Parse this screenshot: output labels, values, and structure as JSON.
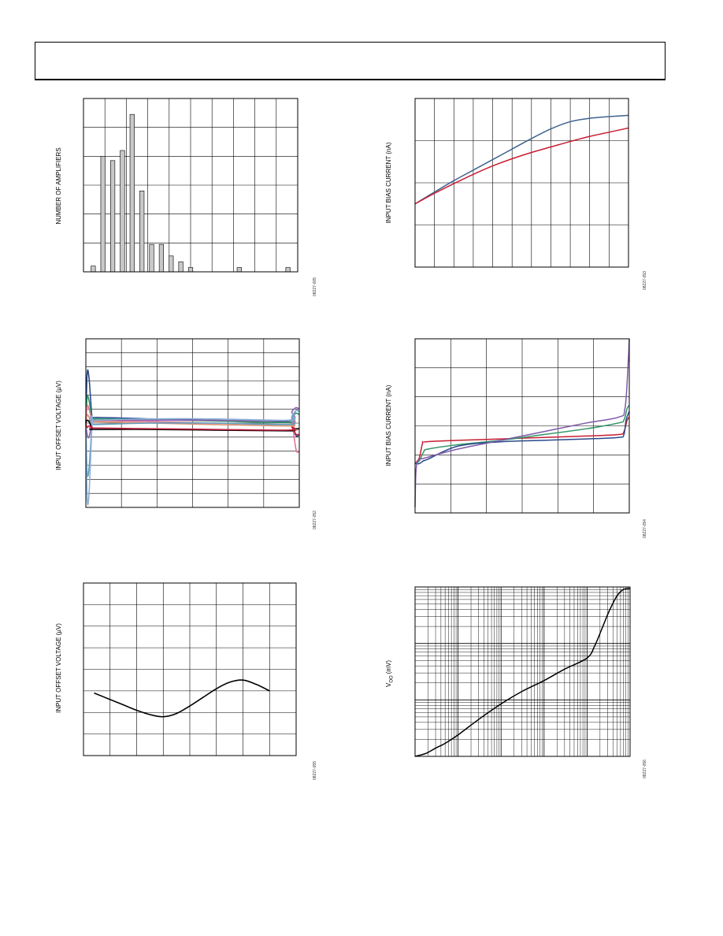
{
  "header": {
    "text": ""
  },
  "chart_data": [
    {
      "id": "c1",
      "type": "bar",
      "ylabel": "NUMBER OF AMPLIFIERS",
      "fig_id": "08227-005",
      "x": [
        1,
        2,
        3,
        4,
        5,
        6,
        7,
        8,
        9,
        10,
        11,
        12,
        13,
        14,
        15,
        16,
        17,
        18,
        19,
        20,
        21
      ],
      "values": [
        0.2,
        4.0,
        3.85,
        4.2,
        5.45,
        2.8,
        0.95,
        0.95,
        0.55,
        0.35,
        0.15,
        0,
        0,
        0,
        0,
        0.15,
        0,
        0,
        0,
        0,
        0.15
      ],
      "xlim": [
        0,
        22
      ],
      "ylim": [
        0,
        6
      ],
      "x_gridlines": 10,
      "y_gridlines": 6,
      "grid": true,
      "bar_color": "#c8c8c8"
    },
    {
      "id": "c2",
      "type": "line",
      "ylabel": "INPUT BIAS CURRENT (nA)",
      "fig_id": "08227-053",
      "xlim": [
        0,
        11
      ],
      "ylim": [
        0,
        4
      ],
      "x_gridlines": 11,
      "y_gridlines": 4,
      "grid": true,
      "series": [
        {
          "color": "#3f6390",
          "x": [
            0,
            1,
            2,
            3,
            4,
            5,
            6,
            7,
            8,
            9,
            10,
            11
          ],
          "y": [
            1.5,
            1.78,
            2.05,
            2.3,
            2.55,
            2.8,
            3.05,
            3.28,
            3.45,
            3.53,
            3.57,
            3.6
          ]
        },
        {
          "color": "#c81e32",
          "x": [
            0,
            1,
            2,
            3,
            4,
            5,
            6,
            7,
            8,
            9,
            10,
            11
          ],
          "y": [
            1.5,
            1.75,
            1.98,
            2.2,
            2.4,
            2.57,
            2.72,
            2.85,
            2.98,
            3.1,
            3.2,
            3.3
          ]
        }
      ]
    },
    {
      "id": "c3",
      "type": "line",
      "ylabel": "INPUT OFFSET VOLTAGE (µV)",
      "fig_id": "08227-052",
      "xlim": [
        0,
        100
      ],
      "ylim": [
        -6,
        6
      ],
      "x_gridlines": 6,
      "y_gridlines": 12,
      "grid": true,
      "series": [
        {
          "color": "#2a4a8c",
          "x": [
            0,
            0.6,
            1.5,
            3,
            4,
            30,
            60,
            95,
            96.5,
            98.5,
            100
          ],
          "y": [
            0,
            3.5,
            3.2,
            0.2,
            0.4,
            0.3,
            0.2,
            0.1,
            -0.1,
            -0.9,
            -0.8
          ]
        },
        {
          "color": "#2e9464",
          "x": [
            0,
            0.6,
            1.5,
            3,
            4,
            30,
            60,
            95,
            96.5,
            98.5,
            100
          ],
          "y": [
            0,
            1.8,
            1.6,
            0.2,
            0.3,
            0.25,
            0.15,
            0.05,
            0.4,
            0.7,
            0.6
          ]
        },
        {
          "color": "#e07890",
          "x": [
            0,
            0.6,
            1.5,
            3,
            4,
            30,
            60,
            95,
            96.5,
            98.5,
            100
          ],
          "y": [
            0,
            1.2,
            1.0,
            0.1,
            0.2,
            0.1,
            0.0,
            -0.1,
            0.1,
            -1.9,
            -2.0
          ]
        },
        {
          "color": "#9060b0",
          "x": [
            0,
            0.6,
            1.5,
            3,
            4,
            30,
            60,
            95,
            96.5,
            98.5,
            100
          ],
          "y": [
            0,
            -0.8,
            -1.0,
            0.1,
            0.2,
            0.2,
            0.2,
            0.2,
            0.8,
            1.1,
            1.0
          ]
        },
        {
          "color": "#e09070",
          "x": [
            0,
            0.6,
            1.5,
            3,
            4,
            30,
            60,
            95,
            96.5,
            98.5,
            100
          ],
          "y": [
            0,
            0.6,
            0.4,
            0.0,
            0.1,
            0.0,
            -0.1,
            -0.2,
            -0.1,
            -0.5,
            -0.4
          ]
        },
        {
          "color": "#60a0c0",
          "x": [
            0,
            0.6,
            1.5,
            3,
            4,
            30,
            60,
            95,
            96.5,
            98.5,
            100
          ],
          "y": [
            0,
            -3.5,
            -3.2,
            0.0,
            -0.1,
            0.0,
            0.0,
            -0.1,
            0.2,
            0.9,
            0.8
          ]
        },
        {
          "color": "#8ab0d8",
          "x": [
            0,
            0.6,
            1.5,
            3,
            4,
            30,
            60,
            95,
            96.5,
            98.5,
            100
          ],
          "y": [
            0,
            -5.3,
            -5.0,
            0.1,
            0.2,
            0.3,
            0.3,
            0.2,
            0.5,
            0.9,
            0.8
          ]
        },
        {
          "color": "#000000",
          "x": [
            0,
            0.6,
            1.5,
            3,
            4,
            30,
            60,
            95,
            96.5,
            98.5,
            100
          ],
          "y": [
            0,
            0.2,
            0.1,
            -0.4,
            -0.45,
            -0.45,
            -0.5,
            -0.55,
            -0.5,
            -0.4,
            -0.4
          ]
        },
        {
          "color": "#c02040",
          "x": [
            0,
            0.6,
            1.5,
            3,
            4,
            30,
            60,
            95,
            96.5,
            98.5,
            100
          ],
          "y": [
            0,
            -0.3,
            -0.2,
            -0.3,
            -0.35,
            -0.4,
            -0.45,
            -0.5,
            -0.3,
            -0.8,
            -0.8
          ]
        }
      ]
    },
    {
      "id": "c4",
      "type": "line",
      "ylabel": "INPUT BIAS CURRENT (nA)",
      "fig_id": "08227-054",
      "xlim": [
        0,
        100
      ],
      "ylim": [
        -2,
        4
      ],
      "x_gridlines": 6,
      "y_gridlines": 6,
      "grid": true,
      "series": [
        {
          "color": "#c81e32",
          "x": [
            0,
            2,
            3.5,
            5,
            20,
            40,
            60,
            80,
            95,
            97.5,
            99,
            100
          ],
          "y": [
            -0.3,
            -0.1,
            0.4,
            0.45,
            0.5,
            0.55,
            0.6,
            0.65,
            0.7,
            0.8,
            1.2,
            1.3
          ]
        },
        {
          "color": "#2e9464",
          "x": [
            0,
            2,
            4,
            6,
            20,
            40,
            60,
            80,
            95,
            97.5,
            99,
            100
          ],
          "y": [
            -0.3,
            -0.2,
            0.1,
            0.2,
            0.35,
            0.5,
            0.7,
            0.9,
            1.1,
            1.2,
            1.6,
            1.7
          ]
        },
        {
          "color": "#2a4a8c",
          "x": [
            0,
            2,
            4,
            6,
            20,
            40,
            60,
            80,
            95,
            97.5,
            98.5,
            100
          ],
          "y": [
            -0.3,
            -0.3,
            -0.2,
            -0.15,
            0.3,
            0.45,
            0.5,
            0.55,
            0.6,
            0.7,
            1.2,
            1.5
          ]
        },
        {
          "color": "#7e5aa8",
          "x": [
            0,
            0.4,
            1.5,
            5,
            20,
            40,
            60,
            80,
            95,
            98,
            99.5,
            100
          ],
          "y": [
            -1.8,
            -0.6,
            -0.2,
            -0.1,
            0.2,
            0.5,
            0.8,
            1.1,
            1.3,
            1.6,
            3.2,
            4.0
          ]
        }
      ]
    },
    {
      "id": "c5",
      "type": "line",
      "ylabel": "INPUT OFFSET VOLTAGE (µV)",
      "fig_id": "08227-055",
      "xlim": [
        0,
        8
      ],
      "ylim": [
        -4,
        4
      ],
      "x_gridlines": 8,
      "y_gridlines": 8,
      "grid": true,
      "series": [
        {
          "color": "#000000",
          "x": [
            0.4,
            1,
            1.5,
            2,
            2.5,
            3,
            3.5,
            4,
            4.5,
            5,
            5.5,
            6,
            6.5,
            7
          ],
          "y": [
            -1.1,
            -1.4,
            -1.65,
            -1.9,
            -2.1,
            -2.2,
            -2.05,
            -1.7,
            -1.3,
            -0.9,
            -0.6,
            -0.5,
            -0.7,
            -1.0
          ]
        }
      ]
    },
    {
      "id": "c6",
      "type": "line",
      "ylabel": "V",
      "ylabel_sub": "OO",
      "ylabel_unit": "(mV)",
      "fig_id": "08227-056",
      "xscale": "log",
      "yscale": "log",
      "xlim": [
        0.001,
        100
      ],
      "ylim": [
        1,
        1000
      ],
      "grid": true,
      "series": [
        {
          "color": "#000000",
          "x": [
            0.001,
            0.0018,
            0.003,
            0.005,
            0.01,
            0.03,
            0.1,
            0.3,
            1,
            3,
            10,
            15,
            22,
            33,
            50,
            70,
            100
          ],
          "y": [
            1.0,
            1.13,
            1.4,
            1.7,
            2.4,
            4.5,
            8.5,
            14,
            22,
            35,
            55,
            90,
            180,
            380,
            700,
            900,
            950
          ]
        }
      ]
    }
  ]
}
